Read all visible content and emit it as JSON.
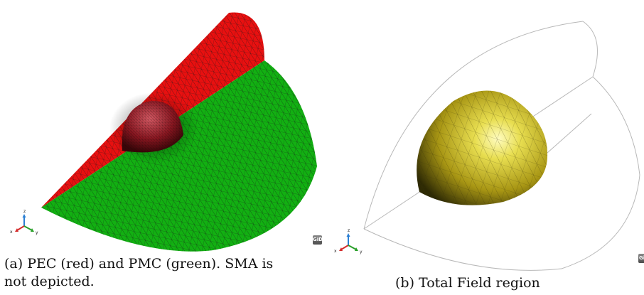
{
  "figure_a": {
    "caption_line1": "(a) PEC (red) and PMC (green). SMA is",
    "caption_line2": "not depicted.",
    "logo_text": "GiD",
    "colors": {
      "pec": "#e81010",
      "pmc": "#10b010",
      "mesh": "#1a1a1a",
      "sphere": "#9a1822"
    },
    "axis_labels": {
      "z": "z",
      "x": "x",
      "y": "y"
    }
  },
  "figure_b": {
    "caption": "(b) Total Field region",
    "logo_text": "GiD",
    "colors": {
      "region": "#b8a820",
      "outline": "#bdbdbd",
      "mesh": "#3a3408"
    },
    "axis_labels": {
      "z": "z",
      "x": "x",
      "y": "y"
    }
  }
}
